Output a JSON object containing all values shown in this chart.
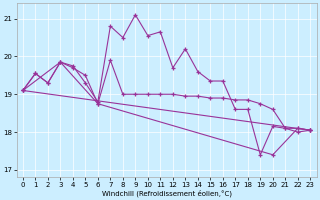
{
  "xlabel": "Windchill (Refroidissement éolien,°C)",
  "bg_color": "#cceeff",
  "line_color": "#993399",
  "xlim": [
    -0.5,
    23.5
  ],
  "ylim": [
    16.8,
    21.4
  ],
  "yticks": [
    17,
    18,
    19,
    20,
    21
  ],
  "xticks": [
    0,
    1,
    2,
    3,
    4,
    5,
    6,
    7,
    8,
    9,
    10,
    11,
    12,
    13,
    14,
    15,
    16,
    17,
    18,
    19,
    20,
    21,
    22,
    23
  ],
  "lines": [
    {
      "x": [
        0,
        1,
        2,
        3,
        4,
        5,
        6,
        7,
        8,
        9,
        10,
        11,
        12,
        13,
        14,
        15,
        16,
        17,
        18,
        19,
        20,
        21,
        22,
        23
      ],
      "y": [
        19.1,
        19.55,
        19.3,
        19.85,
        19.75,
        19.3,
        18.8,
        20.8,
        20.5,
        21.1,
        20.55,
        20.65,
        19.7,
        20.2,
        19.6,
        19.35,
        19.35,
        18.6,
        18.6,
        17.4,
        18.15,
        18.1,
        18.0,
        18.05
      ]
    },
    {
      "x": [
        0,
        1,
        2,
        3,
        4,
        5,
        6,
        7,
        8,
        9,
        10,
        11,
        12,
        13,
        14,
        15,
        16,
        17,
        18,
        19,
        20,
        21,
        22,
        23
      ],
      "y": [
        19.1,
        19.55,
        19.3,
        19.85,
        19.7,
        19.5,
        18.75,
        19.9,
        19.0,
        19.0,
        19.0,
        19.0,
        19.0,
        18.95,
        18.95,
        18.9,
        18.9,
        18.85,
        18.85,
        18.75,
        18.6,
        18.1,
        18.1,
        18.05
      ]
    },
    {
      "x": [
        0,
        3,
        6,
        20,
        22,
        23
      ],
      "y": [
        19.1,
        19.85,
        18.75,
        17.4,
        18.1,
        18.05
      ]
    },
    {
      "x": [
        0,
        23
      ],
      "y": [
        19.1,
        18.05
      ]
    }
  ]
}
